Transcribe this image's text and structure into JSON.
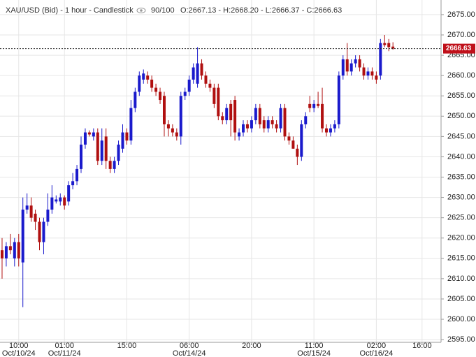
{
  "chart_data": {
    "type": "candlestick",
    "title": "XAU/USD (Bid) - 1 hour - Candlestick",
    "zoom": "90/100",
    "ohlc_text": [
      "O:2667.13",
      "H:2668.20",
      "L:2666.37",
      "C:2666.63"
    ],
    "up_color": "#1a1acc",
    "down_color": "#b01010",
    "grid": true,
    "last_price": 2666.63,
    "last_price_color": "#c0101a",
    "xlim": [
      -0.5,
      105.4
    ],
    "ylim": [
      2594.5,
      2678.6
    ],
    "yticks": [
      {
        "value": 2595,
        "label": "2595.00"
      },
      {
        "value": 2600,
        "label": "2600.00"
      },
      {
        "value": 2605,
        "label": "2605.00"
      },
      {
        "value": 2610,
        "label": "2610.00"
      },
      {
        "value": 2615,
        "label": "2615.00"
      },
      {
        "value": 2620,
        "label": "2620.00"
      },
      {
        "value": 2625,
        "label": "2625.00"
      },
      {
        "value": 2630,
        "label": "2630.00"
      },
      {
        "value": 2635,
        "label": "2635.00"
      },
      {
        "value": 2640,
        "label": "2640.00"
      },
      {
        "value": 2645,
        "label": "2645.00"
      },
      {
        "value": 2650,
        "label": "2650.00"
      },
      {
        "value": 2655,
        "label": "2655.00"
      },
      {
        "value": 2660,
        "label": "2660.00"
      },
      {
        "value": 2665,
        "label": "2665.00"
      },
      {
        "value": 2670,
        "label": "2670.00"
      },
      {
        "value": 2675,
        "label": "2675.00"
      }
    ],
    "xticks": [
      {
        "value": 4,
        "label": "10:00",
        "date": "Oct/10/24"
      },
      {
        "value": 15,
        "label": "01:00",
        "date": "Oct/11/24"
      },
      {
        "value": 30,
        "label": "15:00"
      },
      {
        "value": 45,
        "label": "06:00",
        "date": "Oct/14/24"
      },
      {
        "value": 60,
        "label": "20:00"
      },
      {
        "value": 75,
        "label": "11:00",
        "date": "Oct/15/24"
      },
      {
        "value": 90,
        "label": "02:00",
        "date": "Oct/16/24"
      },
      {
        "value": 101,
        "label": "16:00"
      }
    ],
    "series": {
      "open": [
        2617,
        2615,
        2618,
        2615,
        2619,
        2614,
        2627,
        2628,
        2626,
        2624,
        2619,
        2624,
        2627,
        2629,
        2629,
        2630,
        2629,
        2633,
        2634,
        2637,
        2643,
        2646,
        2645,
        2646,
        2639,
        2645,
        2639,
        2637,
        2639,
        2642,
        2646,
        2644,
        2652,
        2656,
        2659,
        2660,
        2659,
        2657,
        2656,
        2655,
        2648,
        2647,
        2646,
        2645,
        2655,
        2656,
        2659,
        2658,
        2663,
        2660,
        2658,
        2657,
        2657,
        2650,
        2649,
        2653,
        2654,
        2645,
        2646,
        2648,
        2647,
        2649,
        2652,
        2649,
        2647,
        2649,
        2648,
        2647,
        2652,
        2645,
        2644,
        2642,
        2640,
        2648,
        2653,
        2652,
        2653,
        2653,
        2647,
        2646,
        2647,
        2648,
        2660,
        2664,
        2661,
        2663,
        2664,
        2662,
        2660,
        2661,
        2660,
        2660,
        2668,
        2668,
        2667.13
      ],
      "high": [
        2620,
        2619,
        2621,
        2620,
        2621,
        2630,
        2631,
        2630,
        2627,
        2625,
        2625,
        2631,
        2633,
        2630.5,
        2631,
        2630.5,
        2634,
        2636,
        2638,
        2645,
        2647,
        2646.5,
        2647,
        2647,
        2647,
        2647,
        2640,
        2640,
        2644,
        2648,
        2647,
        2654,
        2657,
        2661,
        2661.5,
        2661,
        2660,
        2658,
        2657,
        2656,
        2649,
        2648,
        2647,
        2656,
        2657,
        2660,
        2663,
        2667,
        2664,
        2661,
        2659,
        2658,
        2658,
        2651,
        2653,
        2654,
        2655,
        2647,
        2649,
        2649,
        2650,
        2653,
        2653,
        2650,
        2650,
        2650,
        2649,
        2653,
        2653,
        2646,
        2645,
        2643,
        2649,
        2651,
        2655,
        2654,
        2656,
        2657,
        2648,
        2648,
        2649,
        2661,
        2665,
        2668,
        2664,
        2665,
        2665,
        2663,
        2662,
        2662,
        2661,
        2669,
        2670,
        2669,
        2668.2
      ],
      "low": [
        2610,
        2613,
        2616,
        2613,
        2613,
        2603,
        2626,
        2624,
        2622,
        2617,
        2616,
        2623,
        2626,
        2628.5,
        2628,
        2627,
        2628,
        2632,
        2633,
        2636,
        2642,
        2645,
        2644,
        2638,
        2638,
        2637,
        2636,
        2636,
        2638,
        2641,
        2643,
        2643,
        2651,
        2655,
        2658,
        2658,
        2656,
        2655,
        2653,
        2645,
        2645,
        2645,
        2644,
        2643,
        2654,
        2655,
        2658,
        2657,
        2659,
        2657,
        2656,
        2652,
        2649,
        2648,
        2648,
        2645,
        2644,
        2644,
        2645,
        2646,
        2646,
        2648,
        2647,
        2646,
        2646,
        2647,
        2646,
        2646,
        2644,
        2643,
        2642,
        2638,
        2639,
        2647,
        2651,
        2651,
        2652,
        2646,
        2645,
        2645,
        2646,
        2647,
        2659,
        2660,
        2660,
        2662,
        2661,
        2659,
        2659,
        2659,
        2658,
        2659,
        2667,
        2666,
        2666.37
      ],
      "close": [
        2615,
        2618,
        2617,
        2619,
        2615,
        2627,
        2628,
        2625,
        2624,
        2619,
        2624,
        2627,
        2630,
        2629.5,
        2630,
        2628,
        2633,
        2634,
        2637,
        2643,
        2646,
        2645.5,
        2646,
        2639,
        2644,
        2639,
        2637,
        2639,
        2643,
        2646,
        2644,
        2652,
        2656,
        2660,
        2660.5,
        2659,
        2657,
        2656,
        2654,
        2648,
        2647,
        2646,
        2645,
        2655,
        2656,
        2659,
        2662,
        2663,
        2660,
        2658,
        2657,
        2653,
        2650,
        2649,
        2652,
        2649,
        2646,
        2646,
        2648,
        2647,
        2649,
        2652,
        2648,
        2647,
        2649,
        2648,
        2647,
        2652,
        2645,
        2644,
        2642,
        2640,
        2648,
        2650,
        2652,
        2653,
        2652.5,
        2647,
        2646,
        2647,
        2648,
        2660,
        2664,
        2661,
        2663,
        2664,
        2662,
        2660,
        2661,
        2660,
        2659,
        2668,
        2667.5,
        2667,
        2666.63
      ]
    }
  }
}
